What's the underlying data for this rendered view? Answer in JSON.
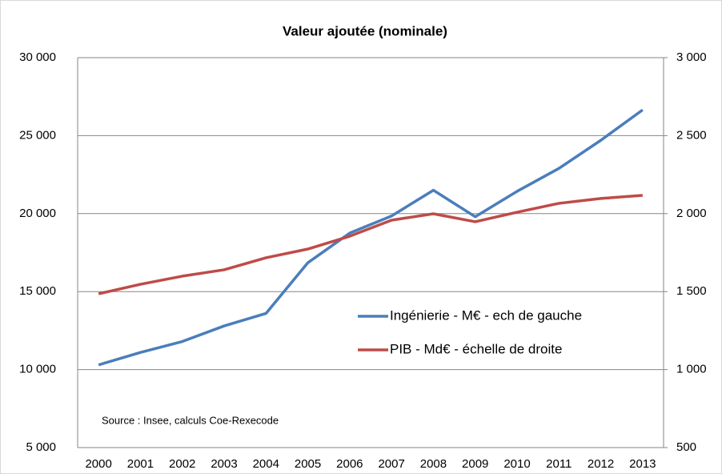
{
  "chart_data": {
    "type": "line",
    "title": "Valeur ajoutée (nominale)",
    "annotation": "Source : Insee, calculs Coe-Rexecode",
    "categories": [
      "2000",
      "2001",
      "2002",
      "2003",
      "2004",
      "2005",
      "2006",
      "2007",
      "2008",
      "2009",
      "2010",
      "2011",
      "2012",
      "2013"
    ],
    "series": [
      {
        "name": "Ingénierie - M€ - ech de gauche",
        "color": "#4a7ebb",
        "axis": "y",
        "values": [
          10300,
          11100,
          11800,
          12800,
          13600,
          16850,
          18750,
          19850,
          21500,
          19800,
          21430,
          22900,
          24700,
          26650
        ]
      },
      {
        "name": "PIB - Md€ - échelle de droite",
        "color": "#be4b48",
        "axis": "y2",
        "values": [
          1486,
          1547,
          1599,
          1640,
          1717,
          1773,
          1855,
          1958,
          1999,
          1948,
          2009,
          2066,
          2097,
          2117
        ]
      }
    ],
    "ylim": [
      5000,
      30000
    ],
    "yticks": [
      {
        "value": 5000,
        "label": "5 000"
      },
      {
        "value": 10000,
        "label": "10 000"
      },
      {
        "value": 15000,
        "label": "15 000"
      },
      {
        "value": 20000,
        "label": "20 000"
      },
      {
        "value": 25000,
        "label": "25 000"
      },
      {
        "value": 30000,
        "label": "30 000"
      }
    ],
    "y2lim": [
      500,
      3000
    ],
    "y2ticks": [
      500,
      {
        "value": 1000,
        "label": "1 000"
      },
      {
        "value": 1500,
        "label": "1 500"
      },
      {
        "value": 2000,
        "label": "2 000"
      },
      {
        "value": 2500,
        "label": "2 500"
      },
      {
        "value": 3000,
        "label": "3 000"
      }
    ],
    "grid": true,
    "legend": "right"
  }
}
